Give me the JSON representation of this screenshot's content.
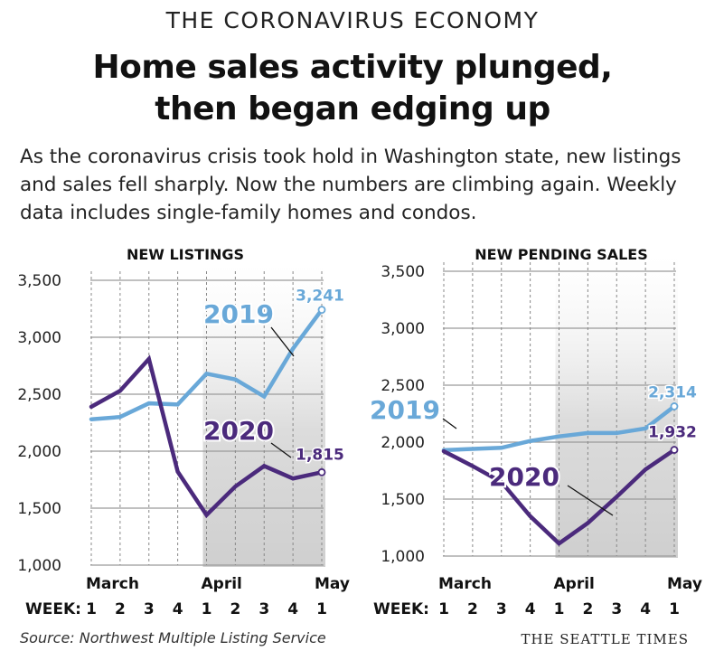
{
  "kicker": "THE CORONAVIRUS ECONOMY",
  "headline": {
    "line1": "Home sales activity plunged,",
    "line2": "then began edging up"
  },
  "dek": "As the coronavirus crisis took hold in Washington state, new listings and sales fell sharply. Now the numbers are climbing again. Weekly data includes single-family homes and condos.",
  "source": "Source: Northwest Multiple Listing Service",
  "credit": "THE SEATTLE TIMES",
  "colors": {
    "s2019": "#69a8d8",
    "s2020": "#4b2a7c",
    "grid": "#9a9a9a",
    "shade": "#d8d8d8"
  },
  "chart_data": [
    {
      "type": "line",
      "title": "NEW LISTINGS",
      "ylim": [
        1000,
        3500
      ],
      "yticks": [
        "1,000",
        "1,500",
        "2,000",
        "2,500",
        "3,000",
        "3,500"
      ],
      "ytick_values": [
        1000,
        1500,
        2000,
        2500,
        3000,
        3500
      ],
      "week_label": "WEEK:",
      "x": [
        "1",
        "2",
        "3",
        "4",
        "1",
        "2",
        "3",
        "4",
        "1"
      ],
      "months": [
        {
          "label": "March",
          "index": 0
        },
        {
          "label": "April",
          "index": 4
        },
        {
          "label": "May",
          "index": 8
        }
      ],
      "shaded_from_index": 4,
      "series": [
        {
          "name": "2019",
          "values": [
            2280,
            2300,
            2420,
            2410,
            2680,
            2630,
            2480,
            2900,
            3241
          ],
          "end_label": "3,241"
        },
        {
          "name": "2020",
          "values": [
            2390,
            2530,
            2810,
            1820,
            1440,
            1690,
            1870,
            1760,
            1815
          ],
          "end_label": "1,815"
        }
      ]
    },
    {
      "type": "line",
      "title": "NEW PENDING SALES",
      "ylim": [
        1000,
        3500
      ],
      "yticks": [
        "1,000",
        "1,500",
        "2,000",
        "2,500",
        "3,000",
        "3,500"
      ],
      "ytick_values": [
        1000,
        1500,
        2000,
        2500,
        3000,
        3500
      ],
      "week_label": "WEEK:",
      "x": [
        "1",
        "2",
        "3",
        "4",
        "1",
        "2",
        "3",
        "4",
        "1"
      ],
      "months": [
        {
          "label": "March",
          "index": 0
        },
        {
          "label": "April",
          "index": 4
        },
        {
          "label": "May",
          "index": 8
        }
      ],
      "shaded_from_index": 4,
      "series": [
        {
          "name": "2019",
          "values": [
            1930,
            1940,
            1950,
            2010,
            2050,
            2080,
            2080,
            2120,
            2314
          ],
          "end_label": "2,314"
        },
        {
          "name": "2020",
          "values": [
            1920,
            1790,
            1650,
            1350,
            1110,
            1290,
            1520,
            1760,
            1932
          ],
          "end_label": "1,932"
        }
      ]
    }
  ]
}
